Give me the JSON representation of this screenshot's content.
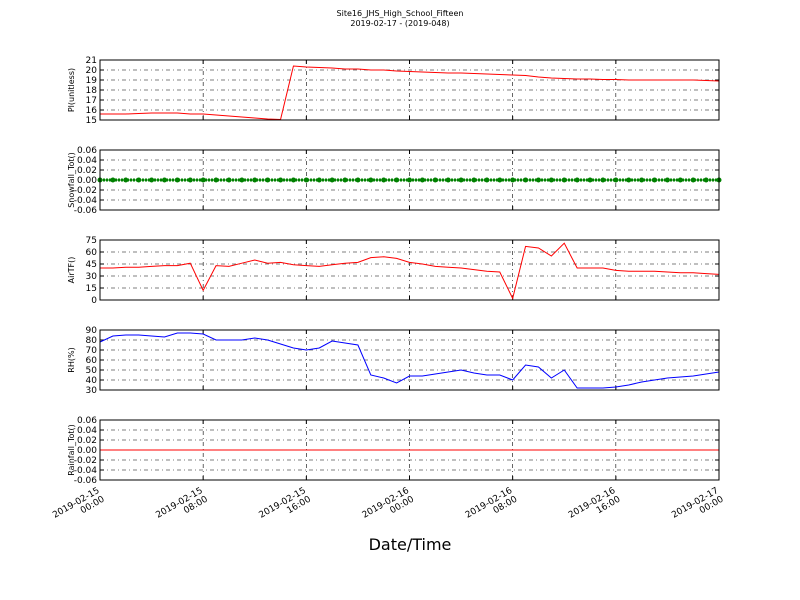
{
  "title": "Site16_JHS_High_School_Fifteen",
  "subtitle": "2019-02-17 - (2019-048)",
  "chart_data": [
    {
      "type": "line",
      "ylabel": "Pl(unitless)",
      "ylim": [
        15,
        21
      ],
      "yticks": [
        15,
        16,
        17,
        18,
        19,
        20,
        21
      ],
      "grid": true,
      "x": [
        "2019-02-15 00:00",
        "2019-02-15 01:00",
        "2019-02-15 02:00",
        "2019-02-15 03:00",
        "2019-02-15 04:00",
        "2019-02-15 05:00",
        "2019-02-15 06:00",
        "2019-02-15 07:00",
        "2019-02-15 08:00",
        "2019-02-15 09:00",
        "2019-02-15 10:00",
        "2019-02-15 11:00",
        "2019-02-15 12:00",
        "2019-02-15 13:00",
        "2019-02-15 14:00",
        "2019-02-15 15:00",
        "2019-02-15 16:00",
        "2019-02-15 17:00",
        "2019-02-15 18:00",
        "2019-02-15 19:00",
        "2019-02-15 20:00",
        "2019-02-15 21:00",
        "2019-02-15 22:00",
        "2019-02-15 23:00",
        "2019-02-16 00:00",
        "2019-02-16 01:00",
        "2019-02-16 02:00",
        "2019-02-16 03:00",
        "2019-02-16 04:00",
        "2019-02-16 05:00",
        "2019-02-16 06:00",
        "2019-02-16 07:00",
        "2019-02-16 08:00",
        "2019-02-16 09:00",
        "2019-02-16 10:00",
        "2019-02-16 11:00",
        "2019-02-16 12:00",
        "2019-02-16 13:00",
        "2019-02-16 14:00",
        "2019-02-16 15:00",
        "2019-02-16 16:00",
        "2019-02-16 17:00",
        "2019-02-16 18:00",
        "2019-02-16 19:00",
        "2019-02-16 20:00",
        "2019-02-16 21:00",
        "2019-02-16 22:00",
        "2019-02-16 23:00",
        "2019-02-17 00:00"
      ],
      "series": [
        {
          "color": "#ff0000",
          "values": [
            15.6,
            15.6,
            15.6,
            15.65,
            15.7,
            15.7,
            15.7,
            15.6,
            15.6,
            15.5,
            15.4,
            15.3,
            15.2,
            15.1,
            15.05,
            20.4,
            20.3,
            20.25,
            20.2,
            20.1,
            20.1,
            20.0,
            20.0,
            19.9,
            19.85,
            19.8,
            19.75,
            19.7,
            19.7,
            19.65,
            19.6,
            19.55,
            19.5,
            19.45,
            19.3,
            19.2,
            19.15,
            19.1,
            19.1,
            19.05,
            19.05,
            19.0,
            19.0,
            19.0,
            19.0,
            19.0,
            19.0,
            18.95,
            18.9
          ]
        }
      ]
    },
    {
      "type": "line",
      "ylabel": "Snowfall_Tot()",
      "ylim": [
        -0.06,
        0.06
      ],
      "yticks": [
        -0.06,
        -0.04,
        -0.02,
        {
          "value": 0,
          "label": "0.00"
        },
        0.02,
        0.04,
        0.06
      ],
      "grid": true,
      "x": [
        "2019-02-15 00:00",
        "2019-02-15 01:00",
        "2019-02-15 02:00",
        "2019-02-15 03:00",
        "2019-02-15 04:00",
        "2019-02-15 05:00",
        "2019-02-15 06:00",
        "2019-02-15 07:00",
        "2019-02-15 08:00",
        "2019-02-15 09:00",
        "2019-02-15 10:00",
        "2019-02-15 11:00",
        "2019-02-15 12:00",
        "2019-02-15 13:00",
        "2019-02-15 14:00",
        "2019-02-15 15:00",
        "2019-02-15 16:00",
        "2019-02-15 17:00",
        "2019-02-15 18:00",
        "2019-02-15 19:00",
        "2019-02-15 20:00",
        "2019-02-15 21:00",
        "2019-02-15 22:00",
        "2019-02-15 23:00",
        "2019-02-16 00:00",
        "2019-02-16 01:00",
        "2019-02-16 02:00",
        "2019-02-16 03:00",
        "2019-02-16 04:00",
        "2019-02-16 05:00",
        "2019-02-16 06:00",
        "2019-02-16 07:00",
        "2019-02-16 08:00",
        "2019-02-16 09:00",
        "2019-02-16 10:00",
        "2019-02-16 11:00",
        "2019-02-16 12:00",
        "2019-02-16 13:00",
        "2019-02-16 14:00",
        "2019-02-16 15:00",
        "2019-02-16 16:00",
        "2019-02-16 17:00",
        "2019-02-16 18:00",
        "2019-02-16 19:00",
        "2019-02-16 20:00",
        "2019-02-16 21:00",
        "2019-02-16 22:00",
        "2019-02-16 23:00",
        "2019-02-17 00:00"
      ],
      "series": [
        {
          "color": "#008000",
          "marker": true,
          "values": [
            0,
            0,
            0,
            0,
            0,
            0,
            0,
            0,
            0,
            0,
            0,
            0,
            0,
            0,
            0,
            0,
            0,
            0,
            0,
            0,
            0,
            0,
            0,
            0,
            0,
            0,
            0,
            0,
            0,
            0,
            0,
            0,
            0,
            0,
            0,
            0,
            0,
            0,
            0,
            0,
            0,
            0,
            0,
            0,
            0,
            0,
            0,
            0,
            0
          ]
        }
      ]
    },
    {
      "type": "line",
      "ylabel": "AirTF()",
      "ylim": [
        0,
        75
      ],
      "yticks": [
        0,
        15,
        30,
        45,
        60,
        75
      ],
      "grid": true,
      "x": [
        "2019-02-15 00:00",
        "2019-02-15 01:00",
        "2019-02-15 02:00",
        "2019-02-15 03:00",
        "2019-02-15 04:00",
        "2019-02-15 05:00",
        "2019-02-15 06:00",
        "2019-02-15 07:00",
        "2019-02-15 08:00",
        "2019-02-15 09:00",
        "2019-02-15 10:00",
        "2019-02-15 11:00",
        "2019-02-15 12:00",
        "2019-02-15 13:00",
        "2019-02-15 14:00",
        "2019-02-15 15:00",
        "2019-02-15 16:00",
        "2019-02-15 17:00",
        "2019-02-15 18:00",
        "2019-02-15 19:00",
        "2019-02-15 20:00",
        "2019-02-15 21:00",
        "2019-02-15 22:00",
        "2019-02-15 23:00",
        "2019-02-16 00:00",
        "2019-02-16 01:00",
        "2019-02-16 02:00",
        "2019-02-16 03:00",
        "2019-02-16 04:00",
        "2019-02-16 05:00",
        "2019-02-16 06:00",
        "2019-02-16 07:00",
        "2019-02-16 08:00",
        "2019-02-16 09:00",
        "2019-02-16 10:00",
        "2019-02-16 11:00",
        "2019-02-16 12:00",
        "2019-02-16 13:00",
        "2019-02-16 14:00",
        "2019-02-16 15:00",
        "2019-02-16 16:00",
        "2019-02-16 17:00",
        "2019-02-16 18:00",
        "2019-02-16 19:00",
        "2019-02-16 20:00",
        "2019-02-16 21:00",
        "2019-02-16 22:00",
        "2019-02-16 23:00",
        "2019-02-17 00:00"
      ],
      "series": [
        {
          "color": "#ff0000",
          "values": [
            40,
            40,
            41,
            41,
            42,
            43,
            43,
            46,
            12,
            43,
            42,
            46,
            50,
            46,
            47,
            44,
            43,
            42,
            44,
            46,
            47,
            53,
            54,
            52,
            47,
            45,
            42,
            41,
            40,
            38,
            36,
            35,
            2,
            67,
            65,
            55,
            71,
            40,
            40,
            40,
            37,
            36,
            36,
            36,
            35,
            34,
            34,
            33,
            32
          ]
        }
      ]
    },
    {
      "type": "line",
      "ylabel": "RH(%)",
      "ylim": [
        30,
        90
      ],
      "yticks": [
        30,
        40,
        50,
        60,
        70,
        80,
        90
      ],
      "grid": true,
      "x": [
        "2019-02-15 00:00",
        "2019-02-15 01:00",
        "2019-02-15 02:00",
        "2019-02-15 03:00",
        "2019-02-15 04:00",
        "2019-02-15 05:00",
        "2019-02-15 06:00",
        "2019-02-15 07:00",
        "2019-02-15 08:00",
        "2019-02-15 09:00",
        "2019-02-15 10:00",
        "2019-02-15 11:00",
        "2019-02-15 12:00",
        "2019-02-15 13:00",
        "2019-02-15 14:00",
        "2019-02-15 15:00",
        "2019-02-15 16:00",
        "2019-02-15 17:00",
        "2019-02-15 18:00",
        "2019-02-15 19:00",
        "2019-02-15 20:00",
        "2019-02-15 21:00",
        "2019-02-15 22:00",
        "2019-02-15 23:00",
        "2019-02-16 00:00",
        "2019-02-16 01:00",
        "2019-02-16 02:00",
        "2019-02-16 03:00",
        "2019-02-16 04:00",
        "2019-02-16 05:00",
        "2019-02-16 06:00",
        "2019-02-16 07:00",
        "2019-02-16 08:00",
        "2019-02-16 09:00",
        "2019-02-16 10:00",
        "2019-02-16 11:00",
        "2019-02-16 12:00",
        "2019-02-16 13:00",
        "2019-02-16 14:00",
        "2019-02-16 15:00",
        "2019-02-16 16:00",
        "2019-02-16 17:00",
        "2019-02-16 18:00",
        "2019-02-16 19:00",
        "2019-02-16 20:00",
        "2019-02-16 21:00",
        "2019-02-16 22:00",
        "2019-02-16 23:00",
        "2019-02-17 00:00"
      ],
      "series": [
        {
          "color": "#0000ff",
          "values": [
            78,
            84,
            85,
            85,
            84,
            83,
            87,
            87,
            86,
            80,
            80,
            80,
            82,
            80,
            76,
            72,
            70,
            72,
            79,
            77,
            75,
            45,
            42,
            37,
            44,
            44,
            46,
            48,
            50,
            47,
            45,
            45,
            40,
            55,
            53,
            42,
            50,
            32,
            32,
            32,
            33,
            35,
            38,
            40,
            42,
            43,
            44,
            46,
            48
          ]
        }
      ]
    },
    {
      "type": "line",
      "ylabel": "Rainfall_Tot()",
      "xlabel": "Date/Time",
      "ylim": [
        -0.06,
        0.06
      ],
      "yticks": [
        -0.06,
        -0.04,
        -0.02,
        {
          "value": 0,
          "label": "0.00"
        },
        0.02,
        0.04,
        0.06
      ],
      "grid": true,
      "xlim": [
        "2019-02-15 00:00",
        "2019-02-17 00:00"
      ],
      "xticks": [
        "2019-02-15 00:00",
        "2019-02-15 08:00",
        "2019-02-15 16:00",
        "2019-02-16 00:00",
        "2019-02-16 08:00",
        "2019-02-16 16:00",
        "2019-02-17 00:00"
      ],
      "x": [
        "2019-02-15 00:00",
        "2019-02-17 00:00"
      ],
      "series": [
        {
          "color": "#ff0000",
          "values": [
            0,
            0
          ]
        }
      ]
    }
  ]
}
